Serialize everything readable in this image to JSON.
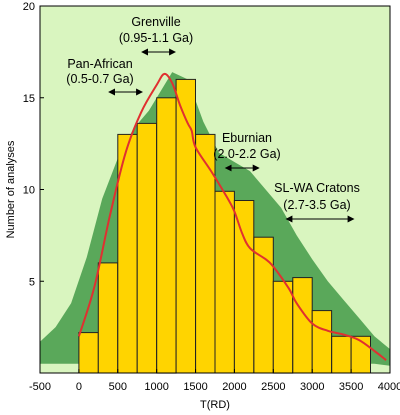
{
  "chart_data": {
    "type": "bar",
    "xlabel": "T(RD)",
    "ylabel": "Number of analyses",
    "xlim": [
      -500,
      4000
    ],
    "ylim": [
      0,
      20
    ],
    "x_ticks": [
      -500,
      0,
      500,
      1000,
      1500,
      2000,
      2500,
      3000,
      3500,
      4000
    ],
    "y_ticks": [
      5,
      10,
      15,
      20
    ],
    "grid": false,
    "legend": "none",
    "bar_width": 250,
    "bars": [
      {
        "x": 0,
        "value": 2.2
      },
      {
        "x": 250,
        "value": 6
      },
      {
        "x": 500,
        "value": 13
      },
      {
        "x": 750,
        "value": 13.6
      },
      {
        "x": 1000,
        "value": 15
      },
      {
        "x": 1250,
        "value": 16
      },
      {
        "x": 1500,
        "value": 13
      },
      {
        "x": 1750,
        "value": 9.9
      },
      {
        "x": 2000,
        "value": 9.4
      },
      {
        "x": 2250,
        "value": 7.4
      },
      {
        "x": 2500,
        "value": 5
      },
      {
        "x": 2750,
        "value": 5.2
      },
      {
        "x": 3000,
        "value": 3.4
      },
      {
        "x": 3250,
        "value": 2
      },
      {
        "x": 3500,
        "value": 2
      }
    ],
    "density_curve": {
      "x": [
        0,
        200,
        400,
        600,
        800,
        1000,
        1100,
        1200,
        1300,
        1400,
        1450,
        1500,
        1700,
        1900,
        2000,
        2100,
        2200,
        2400,
        2500,
        2700,
        2800,
        3000,
        3200,
        3400,
        3600,
        3800,
        3950
      ],
      "y": [
        2,
        4.7,
        8.6,
        12,
        14.2,
        15.7,
        16.3,
        15.8,
        14.6,
        13.6,
        13.2,
        12.3,
        11,
        9.6,
        8.8,
        7.6,
        6.8,
        6.2,
        5.8,
        4.6,
        3.8,
        2.7,
        2.3,
        2.1,
        1.8,
        1.2,
        0.7
      ]
    },
    "envelope": {
      "x": [
        -500,
        -300,
        -100,
        100,
        300,
        500,
        700,
        900,
        1000,
        1200,
        1400,
        1600,
        1800,
        2000,
        2200,
        2400,
        2600,
        2800,
        3000,
        3200,
        3400,
        3600,
        3800,
        4000
      ],
      "upper": [
        1.7,
        2.5,
        3.8,
        6.3,
        9.5,
        11.7,
        13.3,
        14.3,
        15,
        16.4,
        16,
        13.7,
        12,
        11.5,
        11,
        10,
        9,
        7.5,
        6.2,
        5,
        4,
        3,
        2,
        1.3
      ],
      "lower": [
        0.5,
        0.5,
        0.5,
        0.5,
        0.5,
        0.5,
        0.5,
        0.5,
        0.5,
        0.5,
        0.5,
        0.5,
        0.5,
        0.5,
        0.5,
        0.5,
        0.5,
        0.5,
        0.5,
        0.5,
        0.5,
        0.5,
        0.5,
        0.4
      ]
    },
    "annotations": [
      {
        "line1": "Grenville",
        "line2": "(0.95-1.1 Ga)",
        "range": [
          950,
          1100
        ]
      },
      {
        "line1": "Pan-African",
        "line2": "(0.5-0.7 Ga)",
        "range": [
          500,
          700
        ]
      },
      {
        "line1": "Eburnian",
        "line2": "(2.0-2.2 Ga)",
        "range": [
          2000,
          2200
        ]
      },
      {
        "line1": "SL-WA Cratons",
        "line2": "(2.7-3.5 Ga)",
        "range": [
          2700,
          3500
        ]
      }
    ],
    "colors": {
      "background": "#d9f5bf",
      "envelope": "#5aa85a",
      "bars": "#ffd400",
      "bar_edge": "#222222",
      "curve": "#e03030"
    }
  }
}
